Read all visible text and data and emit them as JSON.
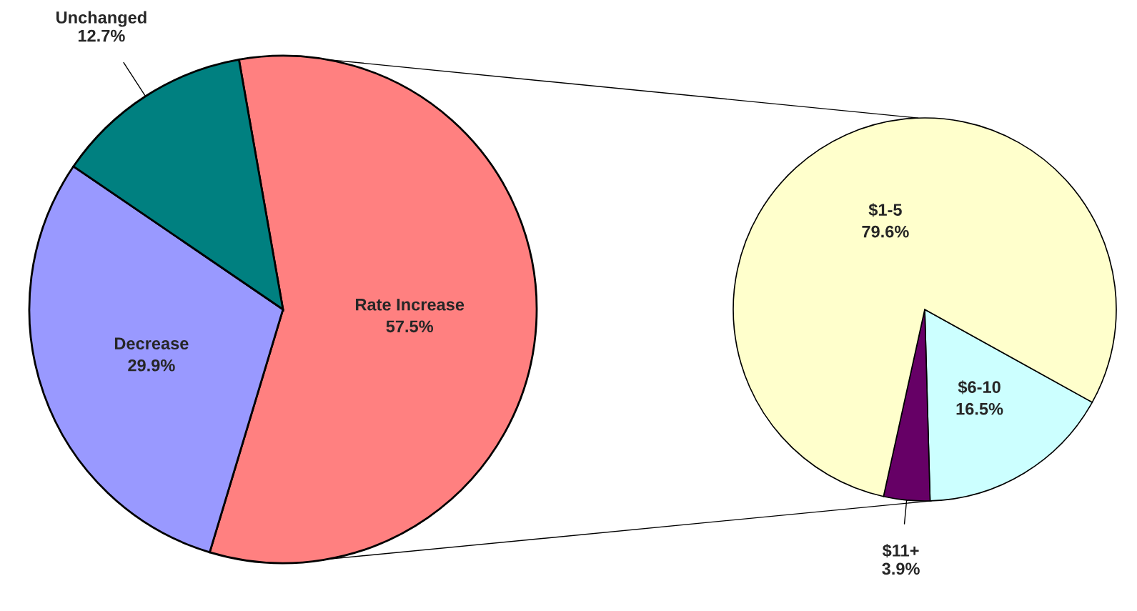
{
  "chart_data": [
    {
      "type": "pie",
      "categories": [
        "Rate Increase",
        "Decrease",
        "Unchanged"
      ],
      "values": [
        57.5,
        29.9,
        12.7
      ],
      "colors": [
        "#ff8080",
        "#9999ff",
        "#008080"
      ],
      "value_labels": [
        "57.5%",
        "29.9%",
        "12.7%"
      ]
    },
    {
      "type": "pie",
      "categories": [
        "$6-10",
        "$11+",
        "$1-5"
      ],
      "values": [
        16.5,
        3.9,
        79.6
      ],
      "colors": [
        "#ccffff",
        "#660066",
        "#ffffcc"
      ],
      "value_labels": [
        "16.5%",
        "3.9%",
        "79.6%"
      ]
    }
  ]
}
